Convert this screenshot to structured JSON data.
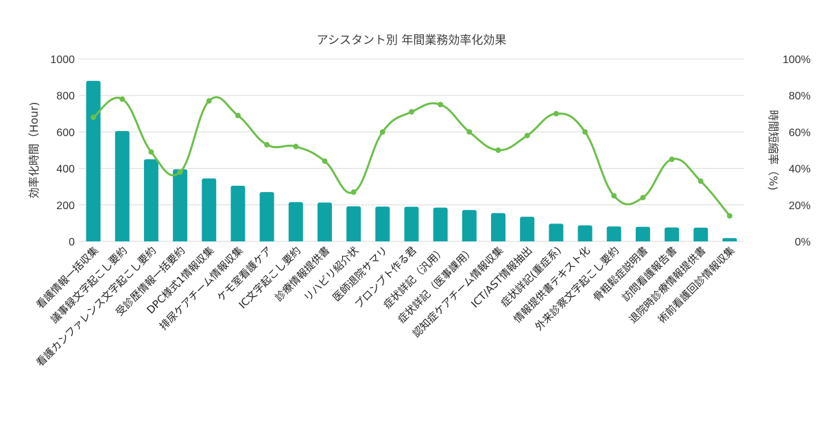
{
  "chart_data": {
    "type": "bar",
    "title": "アシスタント別 年間業務効率化効果",
    "ylabel": "効率化時間（Hour)",
    "y2label": "時間短縮率（%)",
    "ylim": [
      0,
      1000
    ],
    "y2lim": [
      0,
      100
    ],
    "yticks": [
      "0",
      "200",
      "400",
      "600",
      "800",
      "1000"
    ],
    "y2ticks": [
      "0%",
      "20%",
      "40%",
      "60%",
      "80%",
      "100%"
    ],
    "grid": true,
    "legend": "none",
    "bar_color": "#0fa3a6",
    "line_color": "#6cbf4a",
    "categories": [
      "看護情報一括収集",
      "議事録文字起こし要約",
      "看護カンファレンス文字起こし要約",
      "受診歴情報一括要約",
      "DPC様式1情報収集",
      "排尿ケアチーム情報収集",
      "ケモ室看護ケア",
      "IC文字起こし要約",
      "診療情報提供書",
      "リハビリ紹介状",
      "医師退院サマリ",
      "プロンプト作る君",
      "症状詳記（汎用）",
      "症状詳記（医事課用）",
      "認知症ケアチーム情報収集",
      "ICT/AST情報抽出",
      "症状詳記(重症系)",
      "情報提供書テキスト化",
      "外来診察文字起こし要約",
      "骨粗鬆症説明書",
      "訪問看護報告書",
      "退院時診療情報提供書",
      "術前看護回診情報収集"
    ],
    "series": [
      {
        "type": "bar",
        "axis": "left",
        "values": [
          880,
          605,
          450,
          395,
          345,
          305,
          270,
          215,
          213,
          192,
          191,
          190,
          185,
          172,
          155,
          135,
          97,
          88,
          82,
          80,
          76,
          75,
          18
        ]
      },
      {
        "type": "line",
        "axis": "right",
        "values": [
          68,
          78,
          49,
          38,
          77,
          69,
          53,
          52,
          44,
          27,
          60,
          71,
          75,
          60,
          50,
          58,
          70,
          60,
          25,
          24,
          45,
          33,
          14
        ]
      }
    ]
  }
}
